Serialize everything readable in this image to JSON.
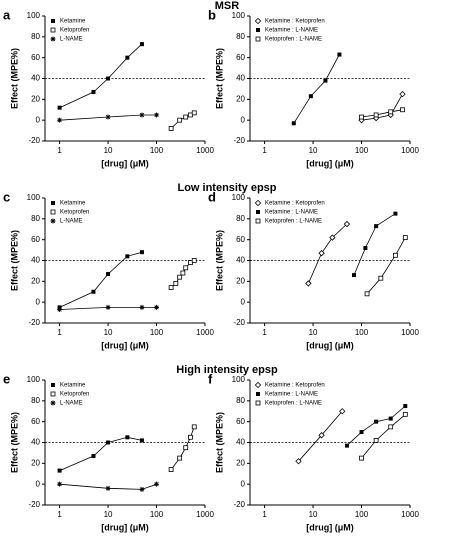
{
  "sections": [
    "MSR",
    "Low intensity epsp",
    "High intensity epsp"
  ],
  "chart_data": [
    {
      "type": "scatter",
      "panel": "a",
      "xlabel": "[drug] (μM)",
      "ylabel": "Effect (MPE%)",
      "log_x": true,
      "xlim": [
        0.5,
        1000
      ],
      "xticks": [
        1,
        10,
        100,
        1000
      ],
      "ylim": [
        -20,
        100
      ],
      "yticks": [
        -20,
        0,
        20,
        40,
        60,
        80,
        100
      ],
      "reference_line": 40,
      "series": [
        {
          "name": "Ketamine",
          "marker": "square-filled",
          "color": "#000000",
          "x": [
            1,
            5,
            10,
            25,
            50
          ],
          "values": [
            12,
            27,
            40,
            60,
            73
          ]
        },
        {
          "name": "Ketoprofen",
          "marker": "square-open",
          "color": "#000000",
          "x": [
            200,
            300,
            400,
            500,
            600
          ],
          "values": [
            -8,
            0,
            3,
            5,
            7
          ]
        },
        {
          "name": "L-NAME",
          "marker": "star",
          "color": "#000000",
          "x": [
            1,
            10,
            50,
            100
          ],
          "values": [
            0,
            3,
            5,
            5
          ]
        }
      ]
    },
    {
      "type": "scatter",
      "panel": "b",
      "xlabel": "[drug] (μM)",
      "ylabel": "Effect (MPE%)",
      "log_x": true,
      "xlim": [
        0.5,
        1000
      ],
      "xticks": [
        1,
        10,
        100,
        1000
      ],
      "ylim": [
        -20,
        100
      ],
      "yticks": [
        -20,
        0,
        20,
        40,
        60,
        80,
        100
      ],
      "reference_line": 40,
      "series": [
        {
          "name": "Ketamine : Ketoprofen",
          "marker": "diamond",
          "color": "#000000",
          "x": [
            100,
            200,
            400,
            700
          ],
          "values": [
            0,
            2,
            5,
            25
          ]
        },
        {
          "name": "Ketamine : L-NAME",
          "marker": "square-filled",
          "color": "#000000",
          "x": [
            4,
            9,
            18,
            35
          ],
          "values": [
            -3,
            23,
            38,
            63
          ]
        },
        {
          "name": "Ketoprofen : L-NAME",
          "marker": "square-open",
          "color": "#000000",
          "x": [
            100,
            200,
            400,
            700
          ],
          "values": [
            3,
            5,
            8,
            10
          ]
        }
      ]
    },
    {
      "type": "scatter",
      "panel": "c",
      "xlabel": "[drug] (μM)",
      "ylabel": "Effect (MPE%)",
      "log_x": true,
      "xlim": [
        0.5,
        1000
      ],
      "xticks": [
        1,
        10,
        100,
        1000
      ],
      "ylim": [
        -20,
        100
      ],
      "yticks": [
        -20,
        0,
        20,
        40,
        60,
        80,
        100
      ],
      "reference_line": 40,
      "series": [
        {
          "name": "Ketamine",
          "marker": "square-filled",
          "color": "#000000",
          "x": [
            1,
            5,
            10,
            25,
            50
          ],
          "values": [
            -5,
            10,
            27,
            44,
            48
          ]
        },
        {
          "name": "Ketoprofen",
          "marker": "square-open",
          "color": "#000000",
          "x": [
            200,
            250,
            300,
            350,
            400,
            500,
            600
          ],
          "values": [
            14,
            18,
            24,
            28,
            33,
            38,
            40
          ]
        },
        {
          "name": "L-NAME",
          "marker": "star",
          "color": "#000000",
          "x": [
            1,
            10,
            50,
            100
          ],
          "values": [
            -7,
            -5,
            -5,
            -5
          ]
        }
      ]
    },
    {
      "type": "scatter",
      "panel": "d",
      "xlabel": "[drug] (μM)",
      "ylabel": "Effect (MPE%)",
      "log_x": true,
      "xlim": [
        0.5,
        1000
      ],
      "xticks": [
        1,
        10,
        100,
        1000
      ],
      "ylim": [
        -20,
        100
      ],
      "yticks": [
        -20,
        0,
        20,
        40,
        60,
        80,
        100
      ],
      "reference_line": 40,
      "series": [
        {
          "name": "Ketamine : Ketoprofen",
          "marker": "diamond",
          "color": "#000000",
          "x": [
            8,
            15,
            25,
            50
          ],
          "values": [
            18,
            47,
            62,
            75
          ]
        },
        {
          "name": "Ketamine : L-NAME",
          "marker": "square-filled",
          "color": "#000000",
          "x": [
            70,
            120,
            200,
            500
          ],
          "values": [
            26,
            52,
            73,
            85
          ]
        },
        {
          "name": "Ketoprofen : L-NAME",
          "marker": "square-open",
          "color": "#000000",
          "x": [
            130,
            250,
            500,
            800
          ],
          "values": [
            8,
            23,
            45,
            62
          ]
        }
      ]
    },
    {
      "type": "scatter",
      "panel": "e",
      "xlabel": "[drug] (μM)",
      "ylabel": "Effect (MPE%)",
      "log_x": true,
      "xlim": [
        0.5,
        1000
      ],
      "xticks": [
        1,
        10,
        100,
        1000
      ],
      "ylim": [
        -20,
        100
      ],
      "yticks": [
        -20,
        0,
        20,
        40,
        60,
        80,
        100
      ],
      "reference_line": 40,
      "series": [
        {
          "name": "Ketamine",
          "marker": "square-filled",
          "color": "#000000",
          "x": [
            1,
            5,
            10,
            25,
            50
          ],
          "values": [
            13,
            27,
            40,
            45,
            42
          ]
        },
        {
          "name": "Ketoprofen",
          "marker": "square-open",
          "color": "#000000",
          "x": [
            200,
            300,
            400,
            500,
            600
          ],
          "values": [
            14,
            25,
            35,
            45,
            55
          ]
        },
        {
          "name": "L-NAME",
          "marker": "star",
          "color": "#000000",
          "x": [
            1,
            10,
            50,
            100
          ],
          "values": [
            0,
            -4,
            -5,
            0
          ]
        }
      ]
    },
    {
      "type": "scatter",
      "panel": "f",
      "xlabel": "[drug] (μM)",
      "ylabel": "Effect (MPE%)",
      "log_x": true,
      "xlim": [
        0.5,
        1000
      ],
      "xticks": [
        1,
        10,
        100,
        1000
      ],
      "ylim": [
        -20,
        100
      ],
      "yticks": [
        -20,
        0,
        20,
        40,
        60,
        80,
        100
      ],
      "reference_line": 40,
      "series": [
        {
          "name": "Ketamine : Ketoprofen",
          "marker": "diamond",
          "color": "#000000",
          "x": [
            5,
            15,
            40
          ],
          "values": [
            22,
            47,
            70
          ]
        },
        {
          "name": "Ketamine : L-NAME",
          "marker": "square-filled",
          "color": "#000000",
          "x": [
            50,
            100,
            200,
            400,
            800
          ],
          "values": [
            37,
            50,
            60,
            63,
            75
          ]
        },
        {
          "name": "Ketoprofen : L-NAME",
          "marker": "square-open",
          "color": "#000000",
          "x": [
            100,
            200,
            400,
            800
          ],
          "values": [
            25,
            42,
            55,
            67
          ]
        }
      ]
    }
  ]
}
